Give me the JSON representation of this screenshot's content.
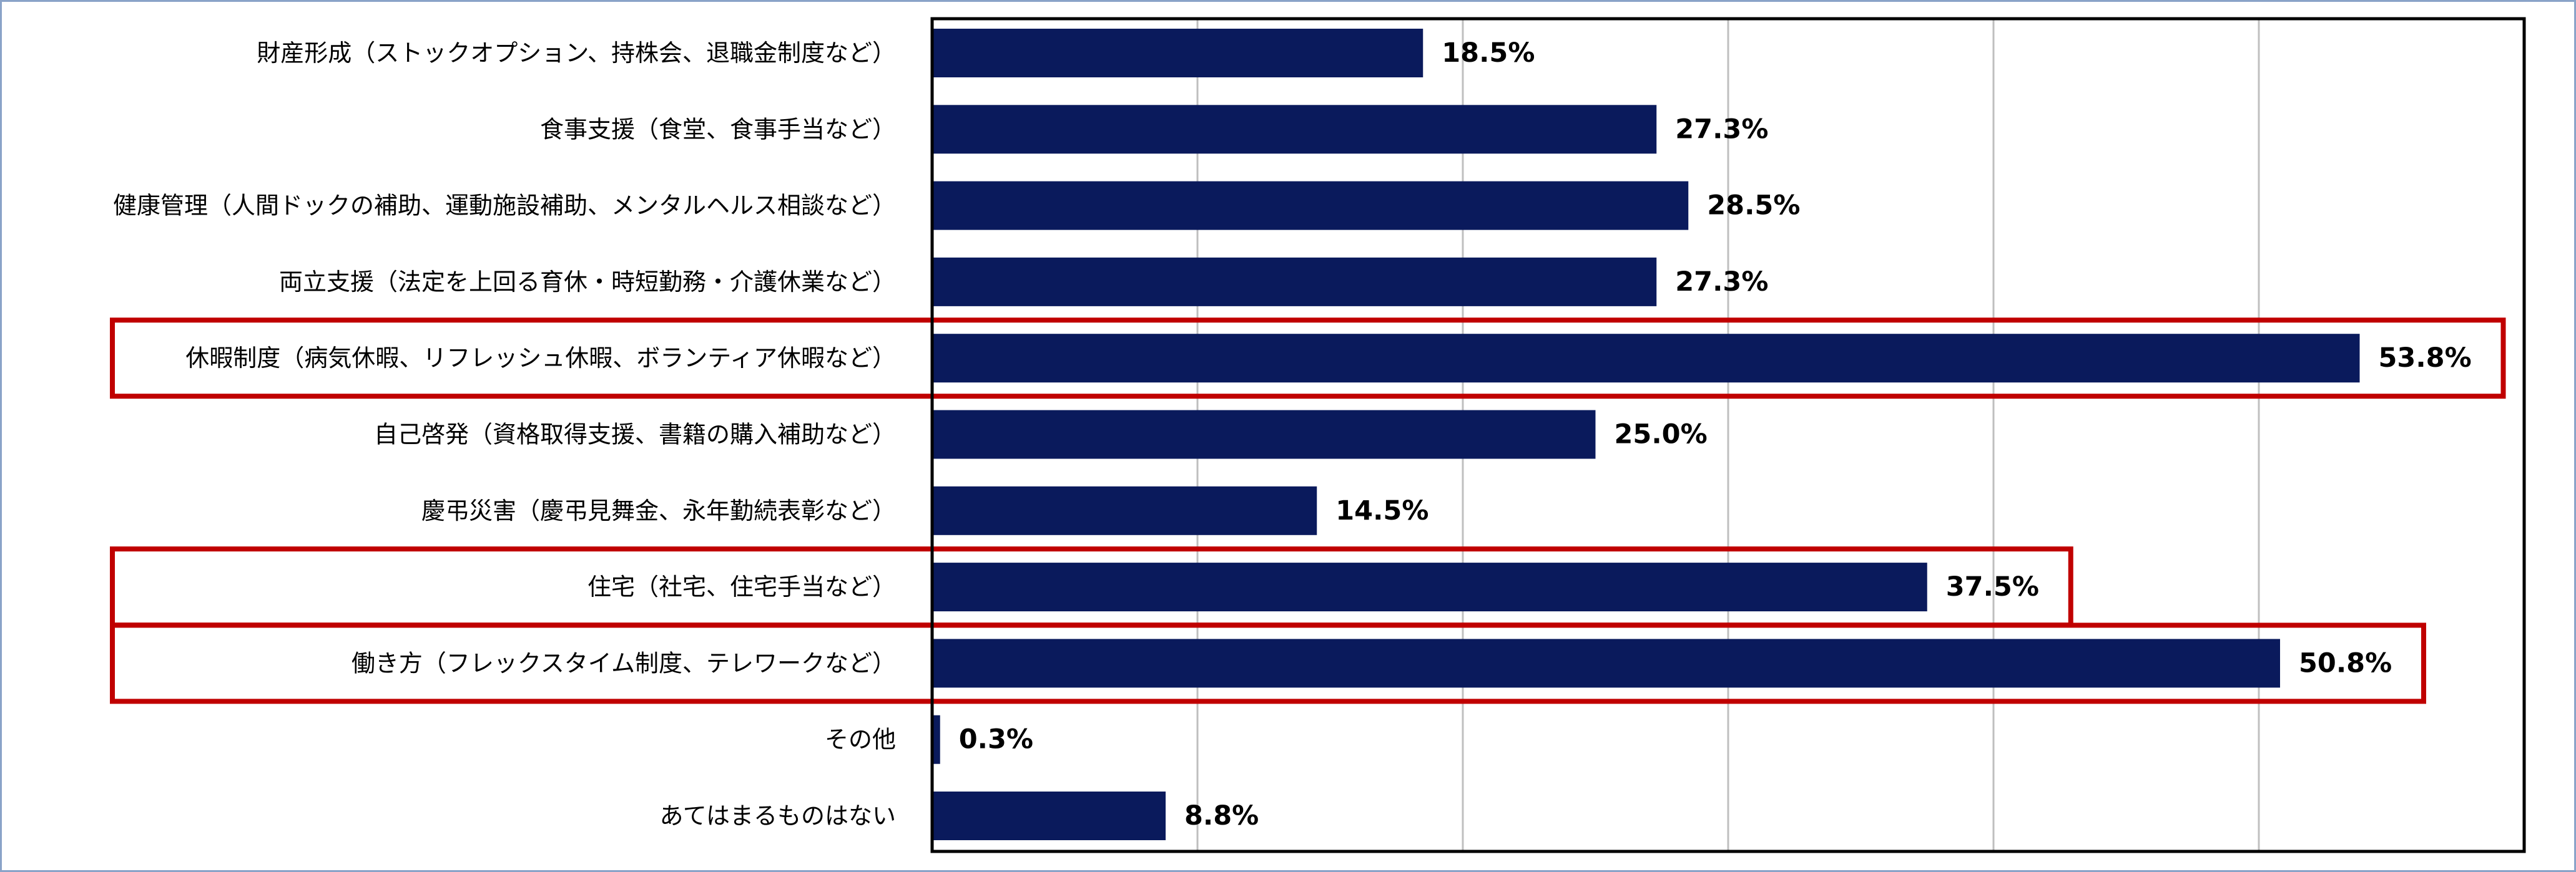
{
  "chart_data": {
    "type": "bar",
    "orientation": "horizontal",
    "categories": [
      "財産形成（ストックオプション、持株会、退職金制度など）",
      "食事支援（食堂、食事手当など）",
      "健康管理（人間ドックの補助、運動施設補助、メンタルヘルス相談など）",
      "両立支援（法定を上回る育休・時短勤務・介護休業など）",
      "休暇制度（病気休暇、リフレッシュ休暇、ボランティア休暇など）",
      "自己啓発（資格取得支援、書籍の購入補助など）",
      "慶弔災害（慶弔見舞金、永年勤続表彰など）",
      "住宅（社宅、住宅手当など）",
      "働き方（フレックスタイム制度、テレワークなど）",
      "その他",
      "あてはまるものはない"
    ],
    "values": [
      18.5,
      27.3,
      28.5,
      27.3,
      53.8,
      25.0,
      14.5,
      37.5,
      50.8,
      0.3,
      8.8
    ],
    "value_labels": [
      "18.5%",
      "27.3%",
      "28.5%",
      "27.3%",
      "53.8%",
      "25.0%",
      "14.5%",
      "37.5%",
      "50.8%",
      "0.3%",
      "8.8%"
    ],
    "highlighted_categories": [
      "休暇制度（病気休暇、リフレッシュ休暇、ボランティア休暇など）",
      "住宅（社宅、住宅手当など）",
      "働き方（フレックスタイム制度、テレワークなど）"
    ],
    "xlim": [
      0,
      60
    ],
    "grid": true,
    "gridline_interval": 10,
    "legend": "none",
    "title": "",
    "xlabel": "",
    "ylabel": ""
  },
  "colors": {
    "bar": "#0a1a5c",
    "highlight": "#c00000",
    "gridline": "#bfbfbf",
    "axis": "#000000",
    "outer_border": "#8aa3c8"
  }
}
